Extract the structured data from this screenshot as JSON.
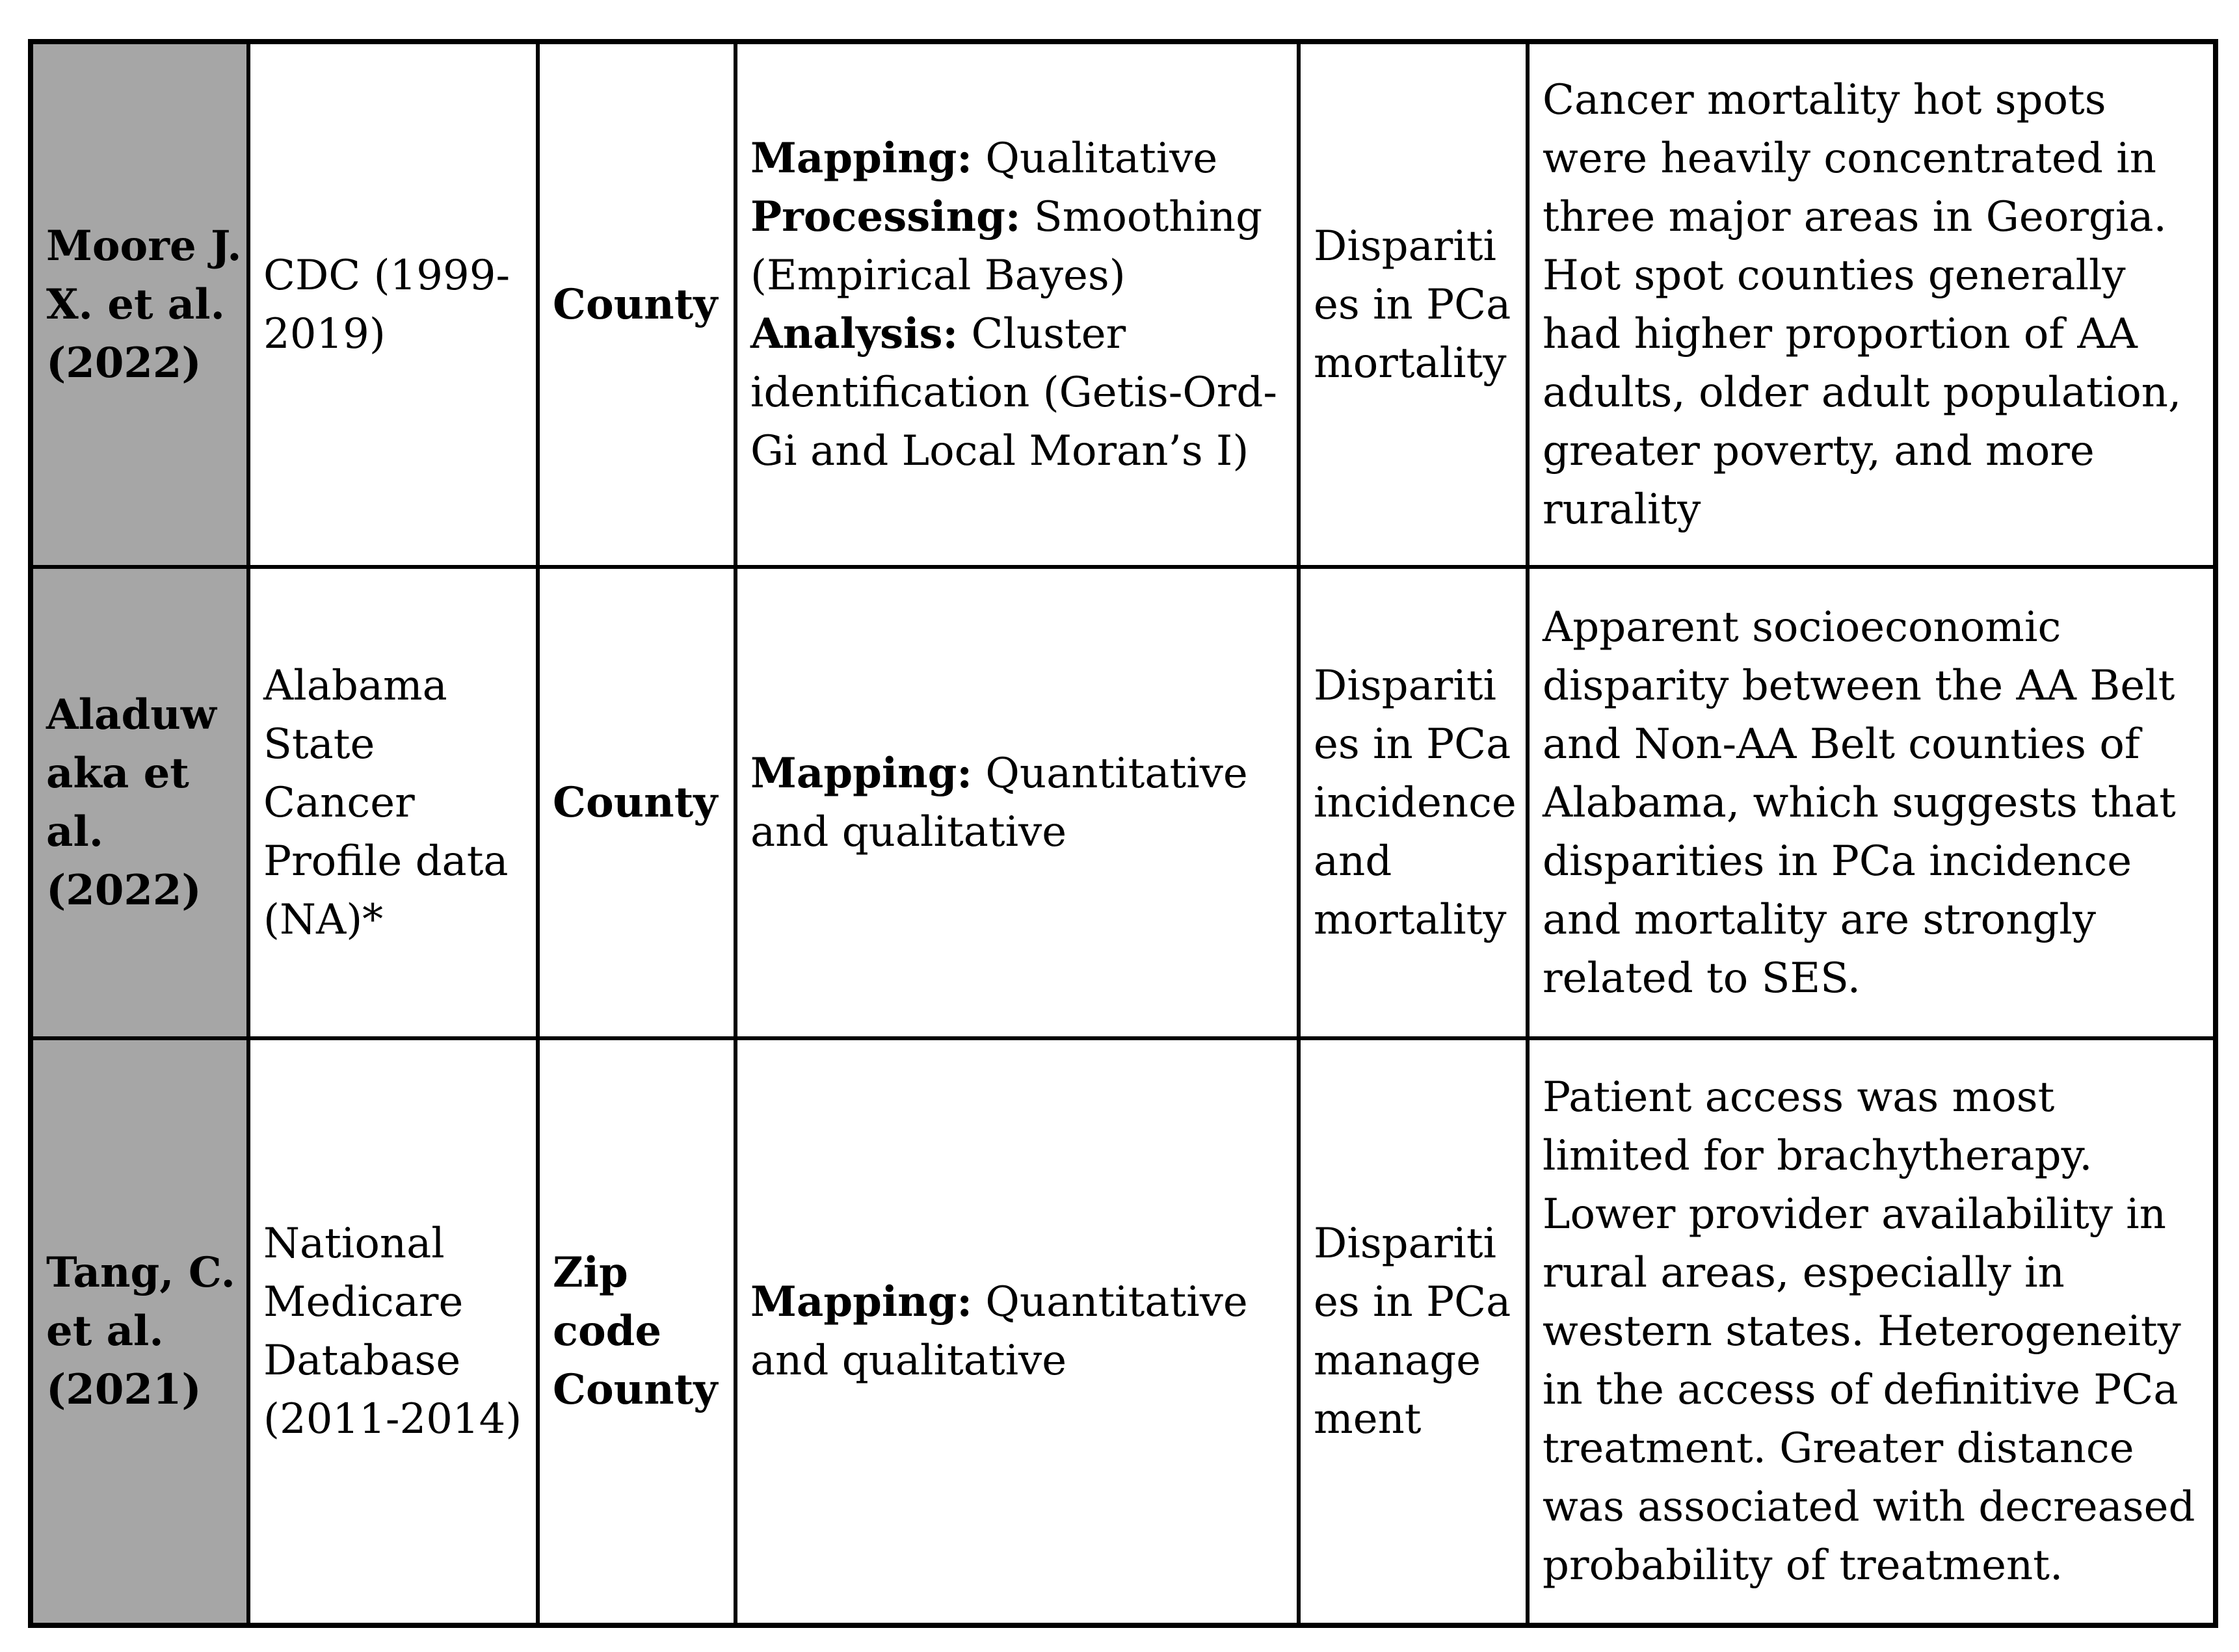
{
  "page": {
    "background": "#ffffff"
  },
  "table": {
    "colors": {
      "author_col_bg": "#a6a6a6",
      "border": "#000000",
      "cell_bg": "#ffffff",
      "text": "#000000"
    },
    "rows": [
      {
        "author": "Moore J.\nX. et al.\n(2022)",
        "data_source": "CDC (1999-\n2019)",
        "geographic_unit": "County",
        "methods": [
          {
            "label": "Mapping:",
            "text": " Qualitative\n"
          },
          {
            "label": "Processing:",
            "text": " Smoothing\n(Empirical Bayes)\n"
          },
          {
            "label": "Analysis:",
            "text": " Cluster\nidentification (Getis-Ord-\nGi and Local Moran’s I)"
          }
        ],
        "focus": "Dispariti\nes in PCa\nmortality",
        "findings": "Cancer mortality hot spots\nwere heavily concentrated in\nthree major areas in Georgia.\nHot spot counties generally\nhad higher proportion of AA\nadults, older adult population,\ngreater poverty, and more\nrurality"
      },
      {
        "author": "Aladuw\naka et\nal.\n(2022)",
        "data_source": "Alabama\nState\nCancer\nProfile data\n(NA)*",
        "geographic_unit": "County",
        "methods": [
          {
            "label": "Mapping:",
            "text": " Quantitative\nand qualitative"
          }
        ],
        "focus": "Dispariti\nes in PCa\nincidence\nand\nmortality",
        "findings": "Apparent socioeconomic\ndisparity between the AA Belt\nand Non-AA Belt counties of\nAlabama, which suggests that\ndisparities in PCa incidence\nand mortality are strongly\nrelated to SES."
      },
      {
        "author": "Tang, C.\net al.\n(2021)",
        "data_source": "National\nMedicare\nDatabase\n(2011-2014)",
        "geographic_unit": "Zip\ncode\nCounty",
        "methods": [
          {
            "label": "Mapping:",
            "text": " Quantitative\nand qualitative"
          }
        ],
        "focus": "Dispariti\nes in PCa\nmanage\nment",
        "findings": "Patient access was most\nlimited for brachytherapy.\nLower provider availability in\nrural areas, especially in\nwestern states. Heterogeneity\nin the access of definitive PCa\ntreatment. Greater distance\nwas associated with decreased\nprobability of treatment."
      }
    ]
  }
}
